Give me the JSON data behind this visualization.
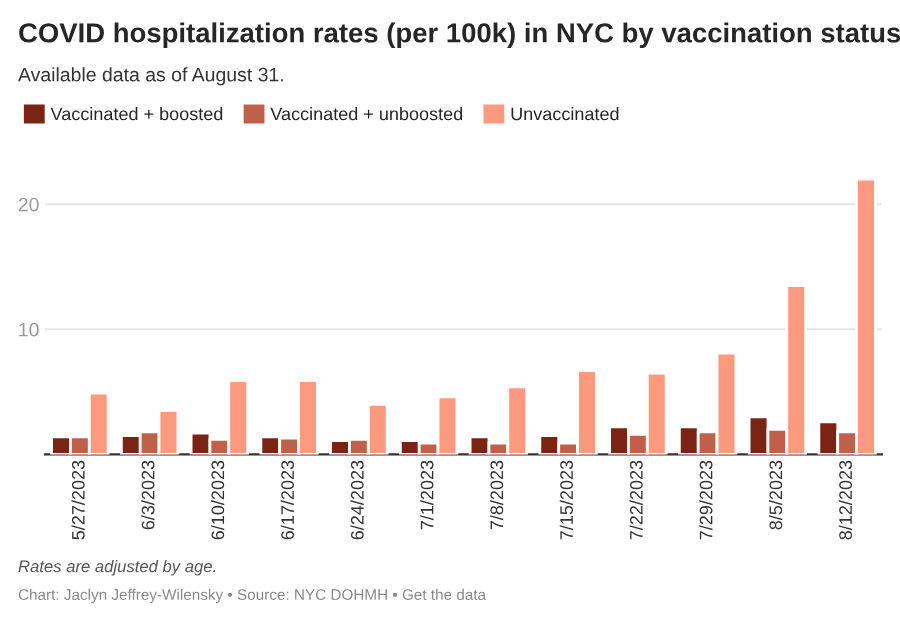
{
  "chart_data": {
    "type": "bar",
    "title": "COVID hospitalization rates (per 100k) in NYC by vaccination status",
    "subtitle": "Available data as of August 31.",
    "categories": [
      "5/27/2023",
      "6/3/2023",
      "6/10/2023",
      "6/17/2023",
      "6/24/2023",
      "7/1/2023",
      "7/8/2023",
      "7/15/2023",
      "7/22/2023",
      "7/29/2023",
      "8/5/2023",
      "8/12/2023"
    ],
    "series": [
      {
        "name": "Vaccinated + boosted",
        "color": "#7b2413",
        "values": [
          1.4,
          1.5,
          1.7,
          1.4,
          1.1,
          1.1,
          1.4,
          1.5,
          2.2,
          2.2,
          3.0,
          2.6
        ]
      },
      {
        "name": "Vaccinated + unboosted",
        "color": "#c0604a",
        "values": [
          1.4,
          1.8,
          1.2,
          1.3,
          1.2,
          0.9,
          0.9,
          0.9,
          1.6,
          1.8,
          2.0,
          1.8
        ]
      },
      {
        "name": "Unvaccinated",
        "color": "#fc9a80",
        "values": [
          4.9,
          3.5,
          5.9,
          5.9,
          4.0,
          4.6,
          5.4,
          6.7,
          6.5,
          8.1,
          13.5,
          22.0
        ]
      }
    ],
    "ylim": [
      0,
      22
    ],
    "yticks": [
      10,
      20
    ],
    "grid": "y",
    "legend": "top left",
    "annotations": [
      "Rates are adjusted by age.",
      "Chart: Jaclyn Jeffrey-Wilensky • Source: NYC DOHMH • Get the data"
    ]
  }
}
